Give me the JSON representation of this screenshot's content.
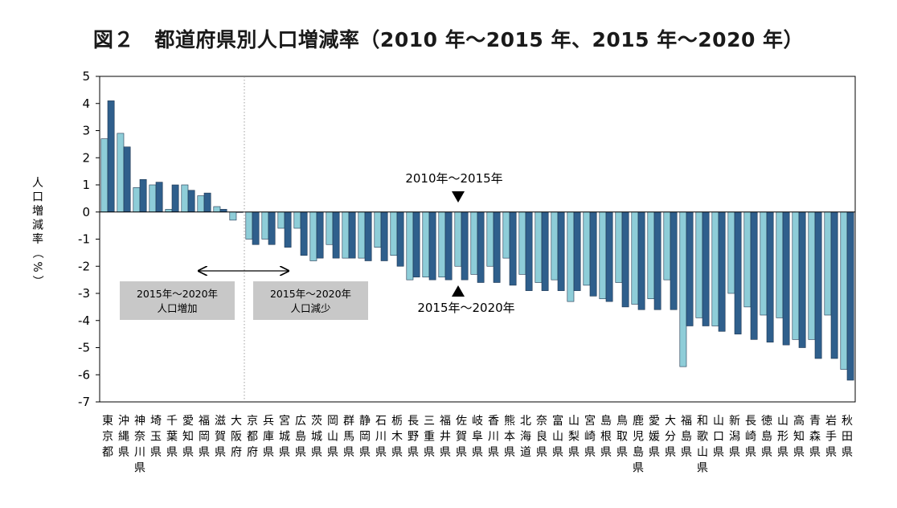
{
  "title": "図２　都道府県別人口増減率（2010 年～2015 年、2015 年～2020 年）",
  "chart_data": {
    "type": "bar",
    "ylabel": "人口増減率（%）",
    "ylim": [
      -7,
      5
    ],
    "yticks": [
      5,
      4,
      3,
      2,
      1,
      0,
      -1,
      -2,
      -3,
      -4,
      -5,
      -6,
      -7
    ],
    "grid": false,
    "categories": [
      "東京都",
      "沖縄県",
      "神奈川県",
      "埼玉県",
      "千葉県",
      "愛知県",
      "福岡県",
      "滋賀県",
      "大阪府",
      "京都府",
      "兵庫県",
      "宮城県",
      "広島県",
      "茨城県",
      "岡山県",
      "群馬県",
      "静岡県",
      "石川県",
      "栃木県",
      "長野県",
      "三重県",
      "福井県",
      "佐賀県",
      "岐阜県",
      "香川県",
      "熊本県",
      "北海道",
      "奈良県",
      "富山県",
      "山梨県",
      "宮崎県",
      "島根県",
      "鳥取県",
      "鹿児島県",
      "愛媛県",
      "大分県",
      "福島県",
      "和歌山県",
      "山口県",
      "新潟県",
      "長崎県",
      "徳島県",
      "山形県",
      "高知県",
      "青森県",
      "岩手県",
      "秋田県"
    ],
    "series": [
      {
        "name": "2010年～2015年",
        "color": "#8ecdd8",
        "values": [
          2.7,
          2.9,
          0.9,
          1.0,
          0.1,
          1.0,
          0.6,
          0.2,
          -0.3,
          -1.0,
          -1.0,
          -0.6,
          -0.6,
          -1.8,
          -1.2,
          -1.7,
          -1.7,
          -1.3,
          -1.6,
          -2.5,
          -2.4,
          -2.4,
          -2.0,
          -2.3,
          -2.0,
          -1.7,
          -2.3,
          -2.6,
          -2.5,
          -3.3,
          -2.7,
          -3.2,
          -2.6,
          -3.4,
          -3.2,
          -2.5,
          -5.7,
          -3.9,
          -4.2,
          -3.0,
          -3.5,
          -3.8,
          -3.9,
          -4.7,
          -4.7,
          -3.8,
          -5.8
        ]
      },
      {
        "name": "2015年～2020年",
        "color": "#2f5f8c",
        "values": [
          4.1,
          2.4,
          1.2,
          1.1,
          1.0,
          0.8,
          0.7,
          0.1,
          0.0,
          -1.2,
          -1.2,
          -1.3,
          -1.6,
          -1.7,
          -1.7,
          -1.7,
          -1.8,
          -1.8,
          -2.0,
          -2.4,
          -2.5,
          -2.5,
          -2.5,
          -2.6,
          -2.6,
          -2.7,
          -2.9,
          -2.9,
          -2.9,
          -2.9,
          -3.1,
          -3.3,
          -3.5,
          -3.6,
          -3.6,
          -3.6,
          -4.2,
          -4.2,
          -4.4,
          -4.5,
          -4.7,
          -4.8,
          -4.9,
          -5.0,
          -5.4,
          -5.4,
          -6.2
        ]
      }
    ],
    "annotations": {
      "top_arrow_label": "2010年～2015年",
      "bottom_arrow_label": "2015年～2020年",
      "increase_box": [
        "2015年～2020年",
        "人口増加"
      ],
      "decrease_box": [
        "2015年～2020年",
        "人口減少"
      ]
    },
    "divider_after_index": 8
  }
}
